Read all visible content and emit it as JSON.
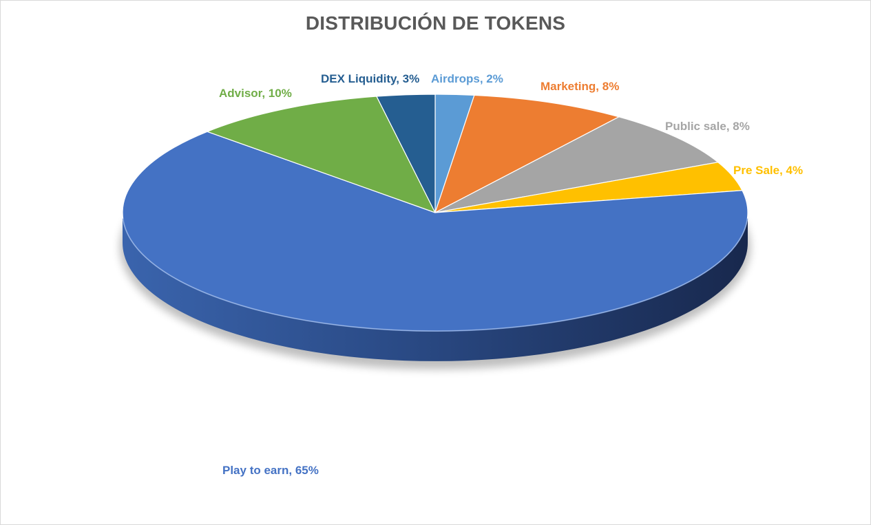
{
  "chart_data": {
    "type": "pie",
    "title": "DISTRIBUCIÓN DE TOKENS",
    "style": "3d",
    "slices": [
      {
        "label": "Airdrops",
        "value": 2,
        "display": "Airdrops, 2%",
        "color": "#5b9bd5",
        "label_color": "#5b9bd5"
      },
      {
        "label": "Marketing",
        "value": 8,
        "display": "Marketing, 8%",
        "color": "#ed7d31",
        "label_color": "#ed7d31"
      },
      {
        "label": "Public sale",
        "value": 8,
        "display": "Public sale, 8%",
        "color": "#a5a5a5",
        "label_color": "#a5a5a5"
      },
      {
        "label": "Pre Sale",
        "value": 4,
        "display": "Pre Sale, 4%",
        "color": "#ffc000",
        "label_color": "#ffc000"
      },
      {
        "label": "Play to earn",
        "value": 65,
        "display": "Play to earn, 65%",
        "color": "#4472c4",
        "label_color": "#4472c4"
      },
      {
        "label": "Advisor",
        "value": 10,
        "display": "Advisor, 10%",
        "color": "#70ad47",
        "label_color": "#70ad47"
      },
      {
        "label": "DEX Liquidity",
        "value": 3,
        "display": "DEX Liquidity, 3%",
        "color": "#255e91",
        "label_color": "#255e91"
      }
    ]
  }
}
